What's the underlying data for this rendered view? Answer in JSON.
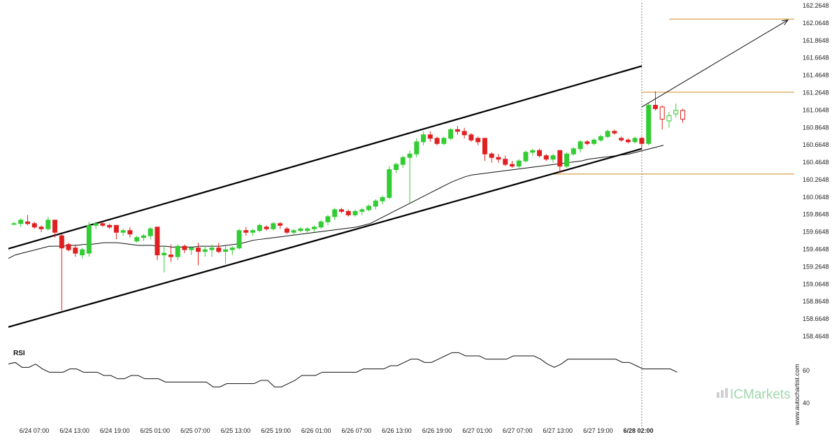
{
  "chart_data": {
    "type": "candlestick",
    "price_ticks": [
      "162.2648",
      "162.0648",
      "161.8648",
      "161.6648",
      "161.4648",
      "161.2648",
      "161.0648",
      "160.8648",
      "160.6648",
      "160.4648",
      "160.2648",
      "160.0648",
      "159.8648",
      "159.6648",
      "159.4648",
      "159.2648",
      "159.0648",
      "158.8648",
      "158.6648",
      "158.4648"
    ],
    "price_range": [
      158.4648,
      162.2648
    ],
    "date_labels": [
      "6/24 07:00",
      "6/24 13:00",
      "6/24 19:00",
      "6/25 01:00",
      "6/25 07:00",
      "6/25 13:00",
      "6/25 19:00",
      "6/26 01:00",
      "6/26 07:00",
      "6/26 13:00",
      "6/26 19:00",
      "6/27 01:00",
      "6/27 07:00",
      "6/27 13:00",
      "6/27 19:00",
      "6/28 02:00"
    ],
    "highlight_date": "6/28 02:00",
    "candles": [
      [
        159.76,
        159.78,
        159.74,
        159.76
      ],
      [
        159.76,
        159.82,
        159.72,
        159.8
      ],
      [
        159.78,
        159.86,
        159.74,
        159.76
      ],
      [
        159.76,
        159.78,
        159.7,
        159.72
      ],
      [
        159.72,
        159.74,
        159.66,
        159.7
      ],
      [
        159.7,
        159.84,
        159.68,
        159.8
      ],
      [
        159.8,
        159.8,
        159.6,
        159.66
      ],
      [
        159.62,
        159.64,
        158.76,
        159.48
      ],
      [
        159.52,
        159.54,
        159.44,
        159.46
      ],
      [
        159.48,
        159.52,
        159.38,
        159.42
      ],
      [
        159.4,
        159.48,
        159.36,
        159.46
      ],
      [
        159.42,
        159.78,
        159.38,
        159.74
      ],
      [
        159.74,
        159.78,
        159.7,
        159.76
      ],
      [
        159.76,
        159.78,
        159.72,
        159.74
      ],
      [
        159.74,
        159.76,
        159.7,
        159.72
      ],
      [
        159.74,
        159.74,
        159.58,
        159.66
      ],
      [
        159.66,
        159.7,
        159.62,
        159.68
      ],
      [
        159.68,
        159.72,
        159.6,
        159.64
      ],
      [
        159.56,
        159.62,
        159.54,
        159.6
      ],
      [
        159.6,
        159.64,
        159.56,
        159.62
      ],
      [
        159.62,
        159.72,
        159.58,
        159.7
      ],
      [
        159.72,
        159.72,
        159.34,
        159.4
      ],
      [
        159.4,
        159.5,
        159.2,
        159.42
      ],
      [
        159.4,
        159.52,
        159.32,
        159.38
      ],
      [
        159.38,
        159.52,
        159.34,
        159.5
      ],
      [
        159.5,
        159.52,
        159.42,
        159.46
      ],
      [
        159.46,
        159.5,
        159.4,
        159.48
      ],
      [
        159.48,
        159.54,
        159.28,
        159.44
      ],
      [
        159.44,
        159.5,
        159.38,
        159.46
      ],
      [
        159.46,
        159.52,
        159.38,
        159.48
      ],
      [
        159.48,
        159.54,
        159.42,
        159.44
      ],
      [
        159.44,
        159.52,
        159.3,
        159.46
      ],
      [
        159.46,
        159.5,
        159.4,
        159.48
      ],
      [
        159.48,
        159.7,
        159.46,
        159.68
      ],
      [
        159.68,
        159.72,
        159.62,
        159.66
      ],
      [
        159.66,
        159.7,
        159.62,
        159.68
      ],
      [
        159.68,
        159.76,
        159.66,
        159.74
      ],
      [
        159.72,
        159.74,
        159.68,
        159.7
      ],
      [
        159.7,
        159.78,
        159.68,
        159.76
      ],
      [
        159.76,
        159.78,
        159.7,
        159.74
      ],
      [
        159.7,
        159.72,
        159.64,
        159.66
      ],
      [
        159.66,
        159.7,
        159.62,
        159.68
      ],
      [
        159.68,
        159.72,
        159.66,
        159.7
      ],
      [
        159.68,
        159.72,
        159.64,
        159.7
      ],
      [
        159.7,
        159.74,
        159.66,
        159.72
      ],
      [
        159.72,
        159.8,
        159.7,
        159.78
      ],
      [
        159.78,
        159.86,
        159.74,
        159.84
      ],
      [
        159.84,
        159.94,
        159.8,
        159.92
      ],
      [
        159.92,
        159.94,
        159.88,
        159.9
      ],
      [
        159.9,
        159.92,
        159.84,
        159.86
      ],
      [
        159.86,
        159.92,
        159.84,
        159.9
      ],
      [
        159.9,
        159.94,
        159.86,
        159.92
      ],
      [
        159.92,
        159.98,
        159.9,
        159.96
      ],
      [
        159.96,
        160.04,
        159.92,
        160.02
      ],
      [
        160.02,
        160.08,
        159.98,
        160.06
      ],
      [
        160.06,
        160.42,
        160.04,
        160.38
      ],
      [
        160.38,
        160.46,
        160.34,
        160.44
      ],
      [
        160.44,
        160.54,
        160.4,
        160.52
      ],
      [
        160.52,
        160.6,
        160.0,
        160.56
      ],
      [
        160.56,
        160.74,
        160.52,
        160.7
      ],
      [
        160.7,
        160.82,
        160.66,
        160.78
      ],
      [
        160.78,
        160.82,
        160.7,
        160.74
      ],
      [
        160.74,
        160.76,
        160.66,
        160.68
      ],
      [
        160.68,
        160.76,
        160.66,
        160.74
      ],
      [
        160.74,
        160.86,
        160.72,
        160.84
      ],
      [
        160.84,
        160.88,
        160.78,
        160.82
      ],
      [
        160.82,
        160.86,
        160.74,
        160.78
      ],
      [
        160.78,
        160.8,
        160.7,
        160.72
      ],
      [
        160.74,
        160.76,
        160.66,
        160.7
      ],
      [
        160.74,
        160.74,
        160.48,
        160.56
      ],
      [
        160.56,
        160.58,
        160.46,
        160.52
      ],
      [
        160.52,
        160.56,
        160.46,
        160.5
      ],
      [
        160.5,
        160.54,
        160.42,
        160.44
      ],
      [
        160.44,
        160.48,
        160.4,
        160.42
      ],
      [
        160.42,
        160.5,
        160.4,
        160.48
      ],
      [
        160.48,
        160.6,
        160.46,
        160.58
      ],
      [
        160.58,
        160.62,
        160.54,
        160.6
      ],
      [
        160.6,
        160.62,
        160.52,
        160.54
      ],
      [
        160.54,
        160.56,
        160.48,
        160.5
      ],
      [
        160.5,
        160.56,
        160.46,
        160.54
      ],
      [
        160.6,
        160.6,
        160.34,
        160.42
      ],
      [
        160.42,
        160.58,
        160.4,
        160.56
      ],
      [
        160.56,
        160.64,
        160.54,
        160.62
      ],
      [
        160.62,
        160.72,
        160.58,
        160.7
      ],
      [
        160.7,
        160.72,
        160.66,
        160.68
      ],
      [
        160.68,
        160.74,
        160.66,
        160.72
      ],
      [
        160.72,
        160.78,
        160.7,
        160.76
      ],
      [
        160.76,
        160.84,
        160.74,
        160.82
      ],
      [
        160.82,
        160.84,
        160.78,
        160.8
      ],
      [
        160.74,
        160.76,
        160.7,
        160.72
      ],
      [
        160.72,
        160.74,
        160.68,
        160.7
      ],
      [
        160.7,
        160.76,
        160.68,
        160.74
      ],
      [
        160.74,
        160.76,
        160.62,
        160.68
      ],
      [
        160.68,
        161.14,
        160.66,
        161.12
      ],
      [
        161.12,
        161.28,
        161.06,
        161.08
      ],
      [
        161.1,
        161.12,
        160.84,
        160.96
      ],
      [
        160.94,
        161.04,
        160.86,
        161.0
      ],
      [
        161.02,
        161.14,
        160.98,
        161.06
      ],
      [
        161.06,
        161.08,
        160.92,
        160.96
      ]
    ],
    "moving_average": [
      159.36,
      159.4,
      159.42,
      159.44,
      159.46,
      159.48,
      159.5,
      159.5,
      159.5,
      159.51,
      159.51,
      159.52,
      159.52,
      159.53,
      159.54,
      159.54,
      159.54,
      159.53,
      159.52,
      159.51,
      159.51,
      159.51,
      159.5,
      159.5,
      159.49,
      159.49,
      159.49,
      159.49,
      159.5,
      159.5,
      159.5,
      159.5,
      159.51,
      159.52,
      159.53,
      159.55,
      159.57,
      159.58,
      159.59,
      159.6,
      159.61,
      159.62,
      159.63,
      159.64,
      159.65,
      159.66,
      159.67,
      159.68,
      159.69,
      159.7,
      159.71,
      159.72,
      159.74,
      159.76,
      159.8,
      159.84,
      159.88,
      159.92,
      159.96,
      160.0,
      160.04,
      160.08,
      160.12,
      160.16,
      160.2,
      160.24,
      160.27,
      160.3,
      160.32,
      160.33,
      160.34,
      160.35,
      160.36,
      160.37,
      160.38,
      160.39,
      160.4,
      160.41,
      160.42,
      160.43,
      160.44,
      160.45,
      160.46,
      160.47,
      160.48,
      160.5,
      160.51,
      160.52,
      160.53,
      160.54,
      160.55,
      160.56,
      160.58,
      160.6,
      160.62,
      160.64,
      160.66
    ],
    "channel": {
      "upper": {
        "start": [
          0,
          159.49
        ],
        "end": [
          92,
          161.57
        ]
      },
      "lower": {
        "start": [
          0,
          158.59
        ],
        "end": [
          92,
          160.62
        ]
      }
    },
    "levels": [
      162.11,
      161.27,
      160.33
    ],
    "projection": {
      "start": [
        92,
        161.1
      ],
      "end": [
        102,
        162.1
      ]
    },
    "rsi": {
      "label": "RSI",
      "ticks": [
        "60",
        "40"
      ],
      "range": [
        30,
        75
      ],
      "values": [
        64,
        65,
        62,
        62,
        64,
        61,
        59,
        59,
        59,
        61,
        61,
        59,
        59,
        59,
        57,
        57,
        55,
        55,
        57,
        57,
        55,
        55,
        55,
        53,
        53,
        53,
        53,
        53,
        53,
        53,
        50,
        50,
        52,
        52,
        52,
        52,
        52,
        54,
        54,
        50,
        50,
        52,
        54,
        57,
        57,
        57,
        59,
        59,
        59,
        59,
        59,
        59,
        61,
        61,
        61,
        61,
        63,
        63,
        65,
        67,
        67,
        65,
        65,
        67,
        69,
        71,
        71,
        69,
        69,
        69,
        67,
        67,
        67,
        67,
        69,
        69,
        69,
        69,
        67,
        64,
        62,
        64,
        67,
        67,
        67,
        67,
        67,
        67,
        67,
        67,
        65,
        65,
        63,
        61,
        61,
        61,
        61,
        61,
        59
      ]
    }
  },
  "branding": {
    "logo": "ICMarkets",
    "watermark": "www.autochartist.com"
  },
  "colors": {
    "bull": "#33cc33",
    "bear": "#e02020",
    "channel": "#000000",
    "level": "#d08a20",
    "ma": "#111111",
    "rsi": "#111111",
    "grid_dash": "#888888"
  }
}
